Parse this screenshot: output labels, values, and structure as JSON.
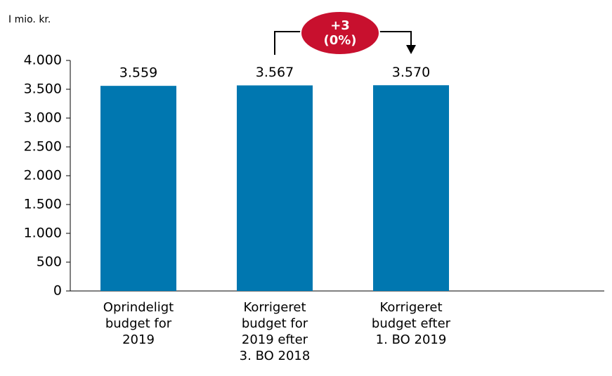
{
  "chart_data": {
    "type": "bar",
    "unit_label": "I mio. kr.",
    "categories": [
      "Oprindeligt\nbudget for\n2019",
      "Korrigeret\nbudget for\n2019 efter\n3. BO 2018",
      "Korrigeret\nbudget efter\n1. BO 2019"
    ],
    "values": [
      3559,
      3567,
      3570
    ],
    "value_labels": [
      "3.559",
      "3.567",
      "3.570"
    ],
    "color": "#0077b0",
    "ylim": [
      0,
      4000
    ],
    "yticks": [
      0,
      500,
      {
        "value": 1000,
        "label": "1.000"
      },
      {
        "value": 1500,
        "label": "1.500"
      },
      {
        "value": 2000,
        "label": "2.000"
      },
      {
        "value": 2500,
        "label": "2.500"
      },
      {
        "value": 3000,
        "label": "3.000"
      },
      {
        "value": 3500,
        "label": "3.500"
      },
      {
        "value": 4000,
        "label": "4.000"
      }
    ],
    "annotation": "+3\n(0%)",
    "annotation_color": "#c8102e"
  }
}
